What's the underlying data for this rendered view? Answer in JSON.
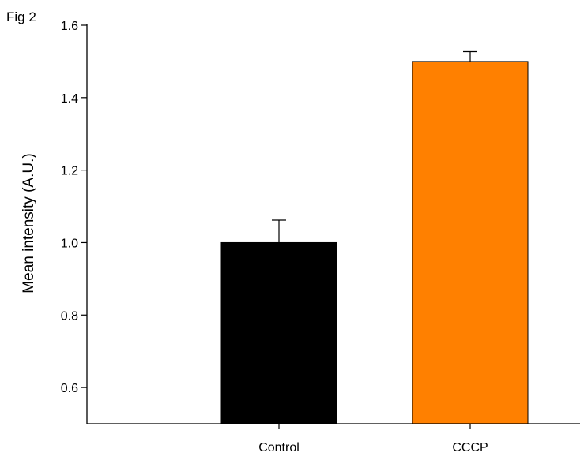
{
  "figure_label": "Fig 2",
  "chart_data": {
    "type": "bar",
    "categories": [
      "Control",
      "CCCP"
    ],
    "values": [
      1.0,
      1.5
    ],
    "errors": [
      0.062,
      0.027
    ],
    "bar_colors": [
      "#000000",
      "#FF8000"
    ],
    "title": "",
    "xlabel": "",
    "ylabel": "Mean intensity (A.U.)",
    "ylim": [
      0.5,
      1.6
    ],
    "yticks": [
      0.6,
      0.8,
      1.0,
      1.2,
      1.4,
      1.6
    ],
    "ytick_labels": [
      "0.6",
      "0.8",
      "1.0",
      "1.2",
      "1.4",
      "1.6"
    ],
    "grid": false,
    "legend": "none"
  }
}
